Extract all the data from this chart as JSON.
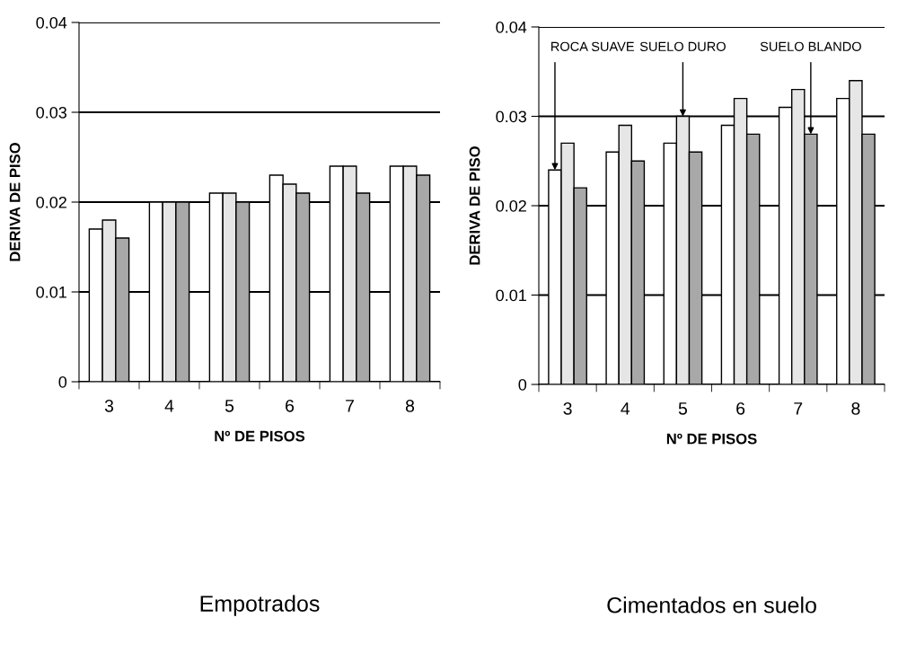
{
  "chart_data": [
    {
      "type": "bar",
      "title": "Empotrados",
      "xlabel": "Nº DE PISOS",
      "ylabel": "DERIVA DE PISO",
      "categories": [
        "3",
        "4",
        "5",
        "6",
        "7",
        "8"
      ],
      "ylim": [
        0,
        0.04
      ],
      "yticks": [
        {
          "value": 0,
          "label": "0"
        },
        0.01,
        0.02,
        0.03,
        0.04
      ],
      "grid": "y",
      "legend": false,
      "series": [
        {
          "color": "#ffffff",
          "values": [
            0.017,
            0.02,
            0.021,
            0.023,
            0.024,
            0.024
          ]
        },
        {
          "color": "#e6e6e6",
          "values": [
            0.018,
            0.02,
            0.021,
            0.022,
            0.024,
            0.024
          ]
        },
        {
          "color": "#a8a8a8",
          "values": [
            0.016,
            0.02,
            0.02,
            0.021,
            0.021,
            0.023
          ]
        }
      ]
    },
    {
      "type": "bar",
      "title": "Cimentados en suelo",
      "xlabel": "Nº DE PISOS",
      "ylabel": "DERIVA DE PISO",
      "categories": [
        "3",
        "4",
        "5",
        "6",
        "7",
        "8"
      ],
      "ylim": [
        0,
        0.04
      ],
      "yticks": [
        {
          "value": 0,
          "label": "0"
        },
        0.01,
        0.02,
        0.03,
        0.04
      ],
      "grid": "y",
      "legend": false,
      "series": [
        {
          "name": "ROCA SUAVE",
          "color": "#ffffff",
          "values": [
            0.024,
            0.026,
            0.027,
            0.029,
            0.031,
            0.032
          ]
        },
        {
          "name": "SUELO DURO",
          "color": "#e6e6e6",
          "values": [
            0.027,
            0.029,
            0.03,
            0.032,
            0.033,
            0.034
          ]
        },
        {
          "name": "SUELO BLANDO",
          "color": "#a8a8a8",
          "values": [
            0.022,
            0.025,
            0.026,
            0.028,
            0.028,
            0.028
          ]
        }
      ]
    }
  ]
}
